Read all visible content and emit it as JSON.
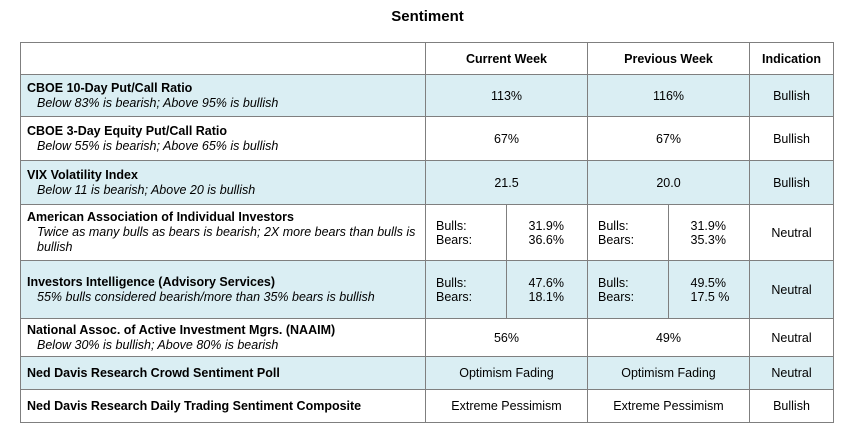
{
  "title": "Sentiment",
  "headers": [
    "",
    "Current Week",
    "Previous Week",
    "Indication"
  ],
  "rows": [
    {
      "label": "CBOE 10-Day Put/Call Ratio",
      "note": "Below 83% is bearish; Above 95% is bullish",
      "current": "113%",
      "previous": "116%",
      "indication": "Bullish"
    },
    {
      "label": "CBOE 3-Day Equity Put/Call Ratio",
      "note": "Below 55% is bearish; Above 65% is bullish",
      "current": "67%",
      "previous": "67%",
      "indication": "Bullish"
    },
    {
      "label": "VIX Volatility Index",
      "note": "Below 11 is bearish; Above 20 is bullish",
      "current": "21.5",
      "previous": "20.0",
      "indication": "Bullish"
    },
    {
      "label": "American Association of Individual Investors",
      "note": "Twice as many bulls as bears is bearish; 2X more bears than bulls is bullish",
      "current": {
        "bulls_label": "Bulls:",
        "bears_label": "Bears:",
        "bulls": "31.9%",
        "bears": "36.6%"
      },
      "previous": {
        "bulls_label": "Bulls:",
        "bears_label": "Bears:",
        "bulls": "31.9%",
        "bears": "35.3%"
      },
      "indication": "Neutral"
    },
    {
      "label": "Investors Intelligence (Advisory Services)",
      "note": "55% bulls considered bearish/more than 35% bears is bullish",
      "current": {
        "bulls_label": "Bulls:",
        "bears_label": "Bears:",
        "bulls": "47.6%",
        "bears": "18.1%"
      },
      "previous": {
        "bulls_label": "Bulls:",
        "bears_label": "Bears:",
        "bulls": "49.5%",
        "bears": "17.5 %"
      },
      "indication": "Neutral"
    },
    {
      "label": "National Assoc. of Active Investment Mgrs. (NAAIM)",
      "note": "Below 30% is bullish; Above 80% is bearish",
      "current": "56%",
      "previous": "49%",
      "indication": "Neutral"
    },
    {
      "label": "Ned Davis Research Crowd Sentiment Poll",
      "note": "",
      "current": "Optimism Fading",
      "previous": "Optimism Fading",
      "indication": "Neutral"
    },
    {
      "label": "Ned Davis Research Daily Trading Sentiment Composite",
      "note": "",
      "current": "Extreme Pessimism",
      "previous": "Extreme Pessimism",
      "indication": "Bullish"
    }
  ]
}
